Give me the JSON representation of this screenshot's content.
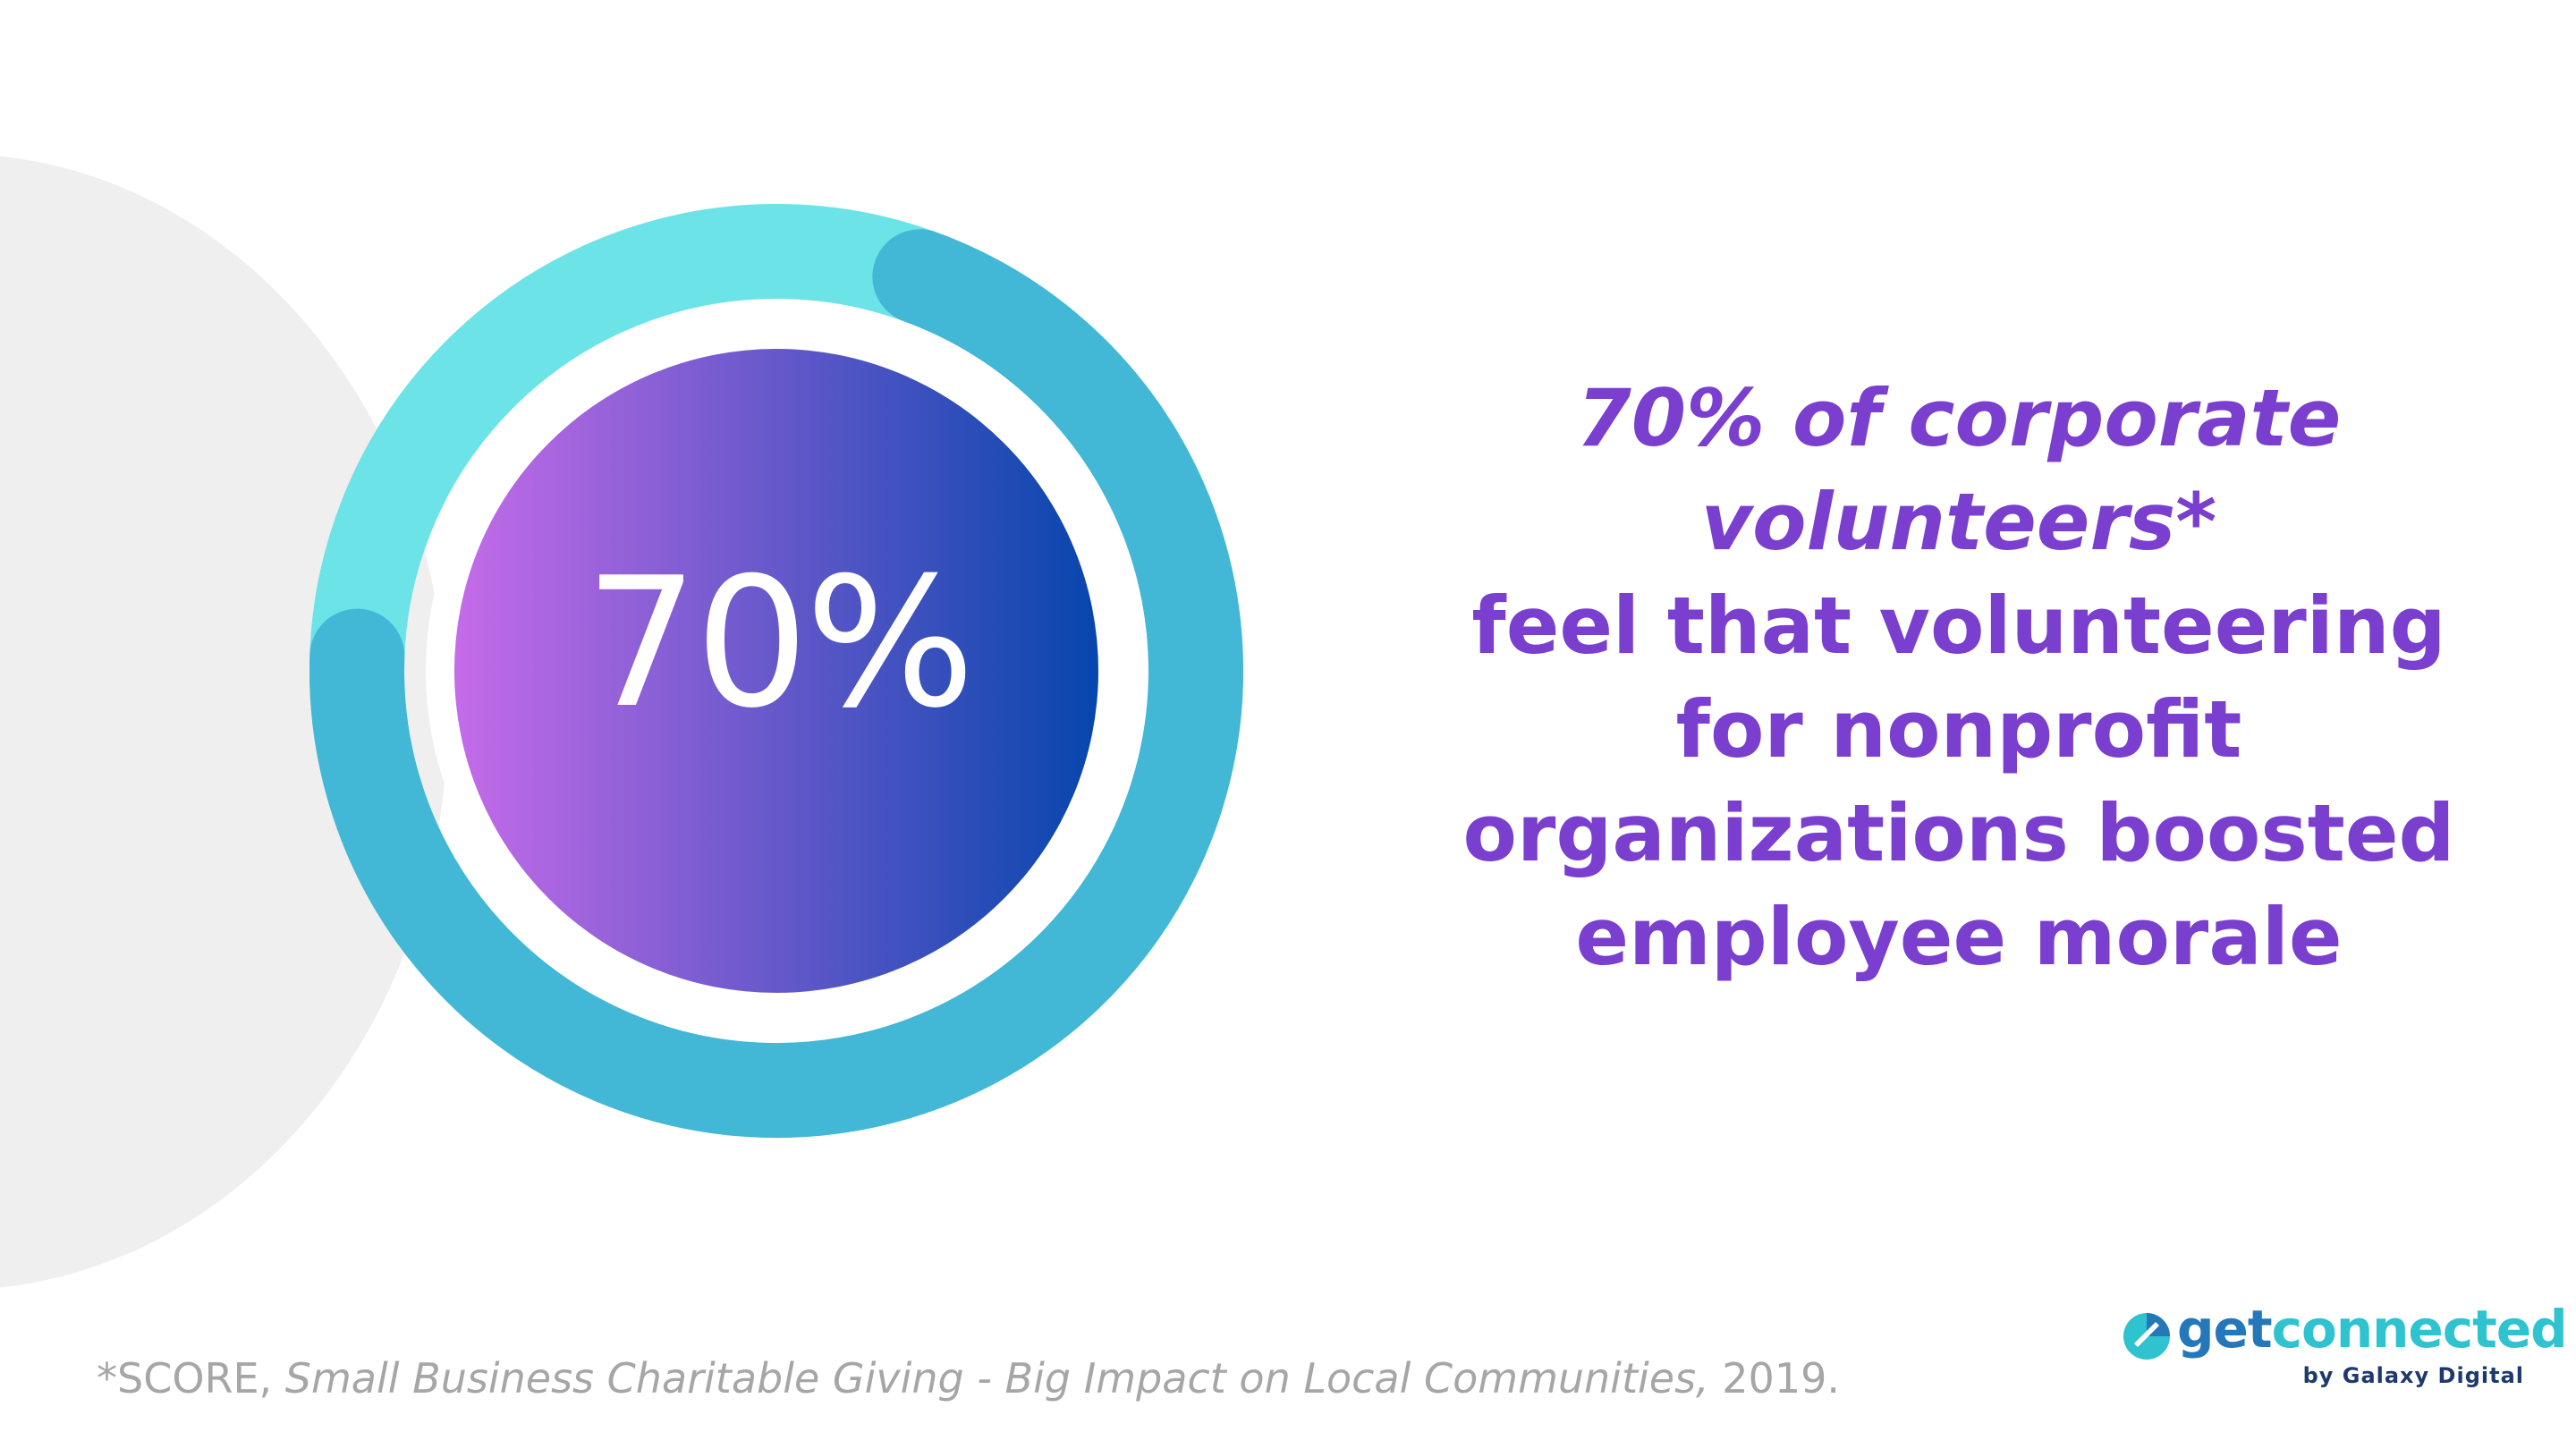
{
  "stat": {
    "value_label": "70%",
    "fraction": 0.7
  },
  "headline": {
    "line1": "70% of corporate",
    "line2": "volunteers*",
    "line3": "feel that volunteering",
    "line4": "for nonprofit",
    "line5": "organizations boosted",
    "line6": "employee morale"
  },
  "footnote": {
    "prefix": "*SCORE, ",
    "title": "Small Business Charitable Giving - Big Impact on Local Communities,",
    "suffix": " 2019."
  },
  "logo": {
    "word_get": "get",
    "word_connected": "connected",
    "tagline": "by Galaxy Digital"
  },
  "colors": {
    "ring_track": "#6be3e7",
    "ring_progress": "#43b7d6",
    "gradient_start": "#c56be8",
    "gradient_end": "#0646ad",
    "headline": "#7a3fce",
    "footnote": "#a6a6a6",
    "background_blob": "#efefef"
  }
}
